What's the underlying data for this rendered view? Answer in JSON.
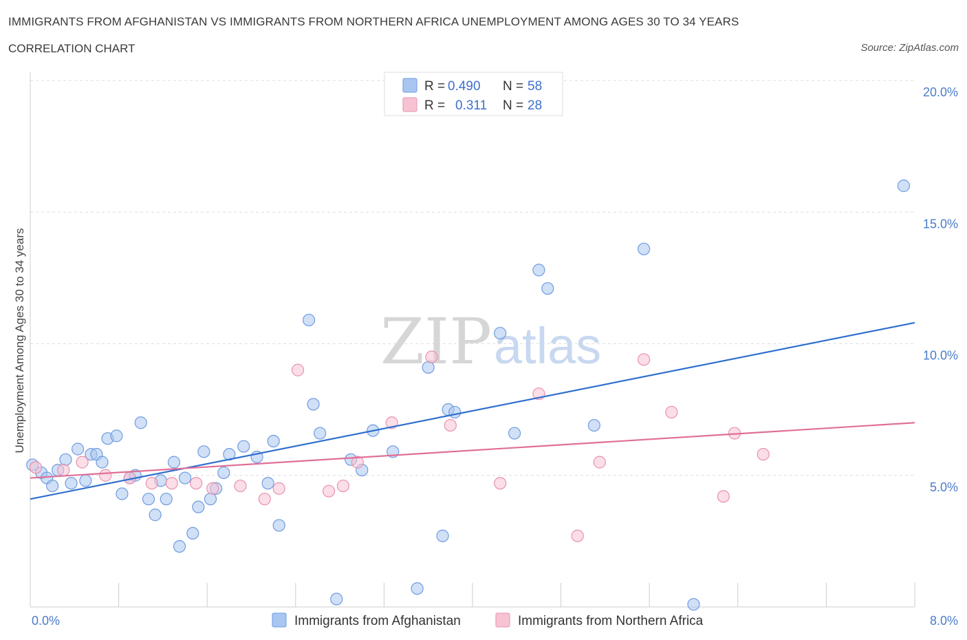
{
  "title": "IMMIGRANTS FROM AFGHANISTAN VS IMMIGRANTS FROM NORTHERN AFRICA UNEMPLOYMENT AMONG AGES 30 TO 34 YEARS",
  "subtitle": "CORRELATION CHART",
  "source": "Source: ZipAtlas.com",
  "watermark": {
    "zip": "ZIP",
    "atlas": "atlas"
  },
  "legend_top": [
    {
      "r_label": "R =",
      "r_value": "0.490",
      "n_label": "N =",
      "n_value": "58",
      "color": "#a9c6f0",
      "stroke": "#6f9be0"
    },
    {
      "r_label": "R =",
      "r_value": "0.311",
      "n_label": "N =",
      "n_value": "28",
      "color": "#f7c3d3",
      "stroke": "#e891ad"
    }
  ],
  "legend_bottom": [
    {
      "label": "Immigrants from Afghanistan",
      "color": "#a9c6f0",
      "stroke": "#6f9be0"
    },
    {
      "label": "Immigrants from Northern Africa",
      "color": "#f7c3d3",
      "stroke": "#e891ad"
    }
  ],
  "chart_data": {
    "type": "scatter",
    "ylabel": "Unemployment Among Ages 30 to 34 years",
    "xlim": [
      0,
      8
    ],
    "ylim": [
      0,
      20
    ],
    "x_tick_labels": [
      {
        "value": 0,
        "label": "0.0%"
      },
      {
        "value": 8,
        "label": "8.0%"
      }
    ],
    "y_tick_labels": [
      {
        "value": 5,
        "label": "5.0%"
      },
      {
        "value": 10,
        "label": "10.0%"
      },
      {
        "value": 15,
        "label": "15.0%"
      },
      {
        "value": 20,
        "label": "20.0%"
      }
    ],
    "series": [
      {
        "name": "Immigrants from Afghanistan",
        "color": "#a9c6f0",
        "stroke": "#6f9be0",
        "line_color": "#2f6fce",
        "trend": {
          "x0": 0,
          "y0": 4.1,
          "x1": 8,
          "y1": 10.8
        },
        "points": [
          [
            0.02,
            5.4
          ],
          [
            0.1,
            5.1
          ],
          [
            0.15,
            4.9
          ],
          [
            0.2,
            4.6
          ],
          [
            0.25,
            5.2
          ],
          [
            0.32,
            5.6
          ],
          [
            0.37,
            4.7
          ],
          [
            0.43,
            6.0
          ],
          [
            0.5,
            4.8
          ],
          [
            0.55,
            5.8
          ],
          [
            0.6,
            5.8
          ],
          [
            0.65,
            5.5
          ],
          [
            0.7,
            6.4
          ],
          [
            0.78,
            6.5
          ],
          [
            0.83,
            4.3
          ],
          [
            0.9,
            4.9
          ],
          [
            0.95,
            5.0
          ],
          [
            1.0,
            7.0
          ],
          [
            1.07,
            4.1
          ],
          [
            1.13,
            3.5
          ],
          [
            1.18,
            4.8
          ],
          [
            1.23,
            4.1
          ],
          [
            1.3,
            5.5
          ],
          [
            1.35,
            2.3
          ],
          [
            1.4,
            4.9
          ],
          [
            1.47,
            2.8
          ],
          [
            1.52,
            3.8
          ],
          [
            1.57,
            5.9
          ],
          [
            1.63,
            4.1
          ],
          [
            1.68,
            4.5
          ],
          [
            1.75,
            5.1
          ],
          [
            1.8,
            5.8
          ],
          [
            1.93,
            6.1
          ],
          [
            2.05,
            5.7
          ],
          [
            2.15,
            4.7
          ],
          [
            2.2,
            6.3
          ],
          [
            2.25,
            3.1
          ],
          [
            2.52,
            10.9
          ],
          [
            2.56,
            7.7
          ],
          [
            2.62,
            6.6
          ],
          [
            2.77,
            0.3
          ],
          [
            2.9,
            5.6
          ],
          [
            3.0,
            5.2
          ],
          [
            3.1,
            6.7
          ],
          [
            3.28,
            5.9
          ],
          [
            3.5,
            0.7
          ],
          [
            3.6,
            9.1
          ],
          [
            3.73,
            2.7
          ],
          [
            3.78,
            7.5
          ],
          [
            3.84,
            7.4
          ],
          [
            4.25,
            10.4
          ],
          [
            4.38,
            6.6
          ],
          [
            4.6,
            12.8
          ],
          [
            4.68,
            12.1
          ],
          [
            5.1,
            6.9
          ],
          [
            5.55,
            13.6
          ],
          [
            6.0,
            0.1
          ],
          [
            7.9,
            16.0
          ]
        ]
      },
      {
        "name": "Immigrants from Northern Africa",
        "color": "#f7c3d3",
        "stroke": "#e891ad",
        "line_color": "#e06f98",
        "trend": {
          "x0": 0,
          "y0": 4.9,
          "x1": 8,
          "y1": 7.0
        },
        "points": [
          [
            0.05,
            5.3
          ],
          [
            0.3,
            5.2
          ],
          [
            0.47,
            5.5
          ],
          [
            0.68,
            5.0
          ],
          [
            0.9,
            4.9
          ],
          [
            1.1,
            4.7
          ],
          [
            1.28,
            4.7
          ],
          [
            1.5,
            4.7
          ],
          [
            1.65,
            4.5
          ],
          [
            1.9,
            4.6
          ],
          [
            2.12,
            4.1
          ],
          [
            2.25,
            4.5
          ],
          [
            2.42,
            9.0
          ],
          [
            2.7,
            4.4
          ],
          [
            2.83,
            4.6
          ],
          [
            2.96,
            5.5
          ],
          [
            3.27,
            7.0
          ],
          [
            3.63,
            9.5
          ],
          [
            3.8,
            6.9
          ],
          [
            4.25,
            4.7
          ],
          [
            4.6,
            8.1
          ],
          [
            4.95,
            2.7
          ],
          [
            5.15,
            5.5
          ],
          [
            5.55,
            9.4
          ],
          [
            5.8,
            7.4
          ],
          [
            6.27,
            4.2
          ],
          [
            6.37,
            6.6
          ],
          [
            6.63,
            5.8
          ]
        ]
      }
    ]
  }
}
